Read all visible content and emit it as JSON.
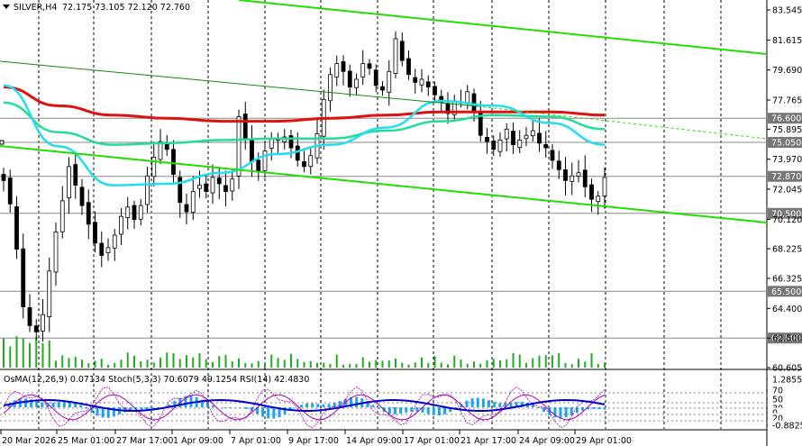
{
  "header": {
    "symbol": "SILVER,H4",
    "ohlc": "72.175 73.105 72.120 72.760"
  },
  "price_axis": {
    "ticks": [
      "83.545",
      "81.615",
      "79.690",
      "77.765",
      "75.895",
      "73.970",
      "72.045",
      "70.120",
      "68.225",
      "66.325",
      "64.400",
      "62.500",
      "60.605"
    ],
    "tick_values": [
      83.545,
      81.615,
      79.69,
      77.765,
      75.895,
      73.97,
      72.045,
      70.12,
      68.225,
      66.325,
      64.4,
      62.5,
      60.605
    ],
    "range": [
      60.605,
      83.545
    ]
  },
  "level_tags": [
    {
      "label": "76.600",
      "value": 76.6
    },
    {
      "label": "75.050",
      "value": 75.05
    },
    {
      "label": "72.870",
      "value": 72.87
    },
    {
      "label": "70.500",
      "value": 70.5
    },
    {
      "label": "65.500",
      "value": 65.5
    },
    {
      "label": "62.500",
      "value": 62.5
    }
  ],
  "time_axis": [
    "20 Mar 2026",
    "25 Mar 01:00",
    "27 Mar 17:00",
    "1 Apr 09:00",
    "7 Apr 01:00",
    "9 Apr 17:00",
    "14 Apr 09:00",
    "17 Apr 01:00",
    "21 Apr 17:00",
    "24 Apr 09:00",
    "29 Apr 01:00"
  ],
  "indicator": {
    "label": "OsMA(12,26,9) 0.07134  Stoch(5,3,3) 70.6079 49.1254  RSI(14) 42.4830",
    "ticks": [
      "1.28555",
      "70",
      "50",
      "30",
      "0",
      "20",
      "-0.8825"
    ]
  },
  "colors": {
    "candle": "#000000",
    "ma_slow": "#dd1111",
    "ma_mid": "#22dd99",
    "ma_fast": "#22ddee",
    "channel": "#22dd00",
    "grid": "#000000",
    "tag_bg": "#777777",
    "volume": "#22aa22",
    "osma": "#1fa3ee",
    "stoch_main": "#0000cc",
    "stoch_signal": "#aa00aa"
  },
  "chart_data": {
    "type": "candlestick",
    "title": "SILVER,H4",
    "ylim": [
      60.605,
      83.545
    ],
    "series": [
      {
        "name": "close",
        "values": [
          72.6,
          71.1,
          68.2,
          64.5,
          63.3,
          62.9,
          64.0,
          66.8,
          69.3,
          71.3,
          73.5,
          72.3,
          71.0,
          69.8,
          68.6,
          67.8,
          68.3,
          69.1,
          70.3,
          70.9,
          70.1,
          71.0,
          72.9,
          74.1,
          75.1,
          74.6,
          73.0,
          71.2,
          70.6,
          71.9,
          72.3,
          71.9,
          72.8,
          72.4,
          71.9,
          72.7,
          76.7,
          75.3,
          73.8,
          73.2,
          74.5,
          75.3,
          75.2,
          75.4,
          74.7,
          73.9,
          73.5,
          74.2,
          75.6,
          77.8,
          79.4,
          80.1,
          79.6,
          78.6,
          79.1,
          80.1,
          79.8,
          78.7,
          78.4,
          79.6,
          81.7,
          80.3,
          79.4,
          78.9,
          79.1,
          78.6,
          78.1,
          77.6,
          76.9,
          77.7,
          77.6,
          78.3,
          77.1,
          75.5,
          75.1,
          74.6,
          75.2,
          75.9,
          74.9,
          75.2,
          75.5,
          75.8,
          75.0,
          74.7,
          73.9,
          73.3,
          72.6,
          72.9,
          73.1,
          72.2,
          71.4,
          71.6,
          72.8
        ]
      },
      {
        "name": "MA slow",
        "values": [
          78.6,
          77.4,
          76.8,
          76.6,
          76.4,
          76.4,
          76.6,
          76.8,
          77.0,
          77.0,
          77.0,
          76.8
        ]
      },
      {
        "name": "MA mid",
        "values": [
          77.6,
          75.7,
          74.9,
          75.0,
          75.2,
          75.3,
          75.3,
          75.8,
          76.4,
          76.8,
          76.7,
          75.9
        ]
      },
      {
        "name": "MA fast",
        "values": [
          78.7,
          74.8,
          72.3,
          72.4,
          73.1,
          74.3,
          74.9,
          76.0,
          77.7,
          77.4,
          76.3,
          74.9
        ]
      }
    ]
  }
}
